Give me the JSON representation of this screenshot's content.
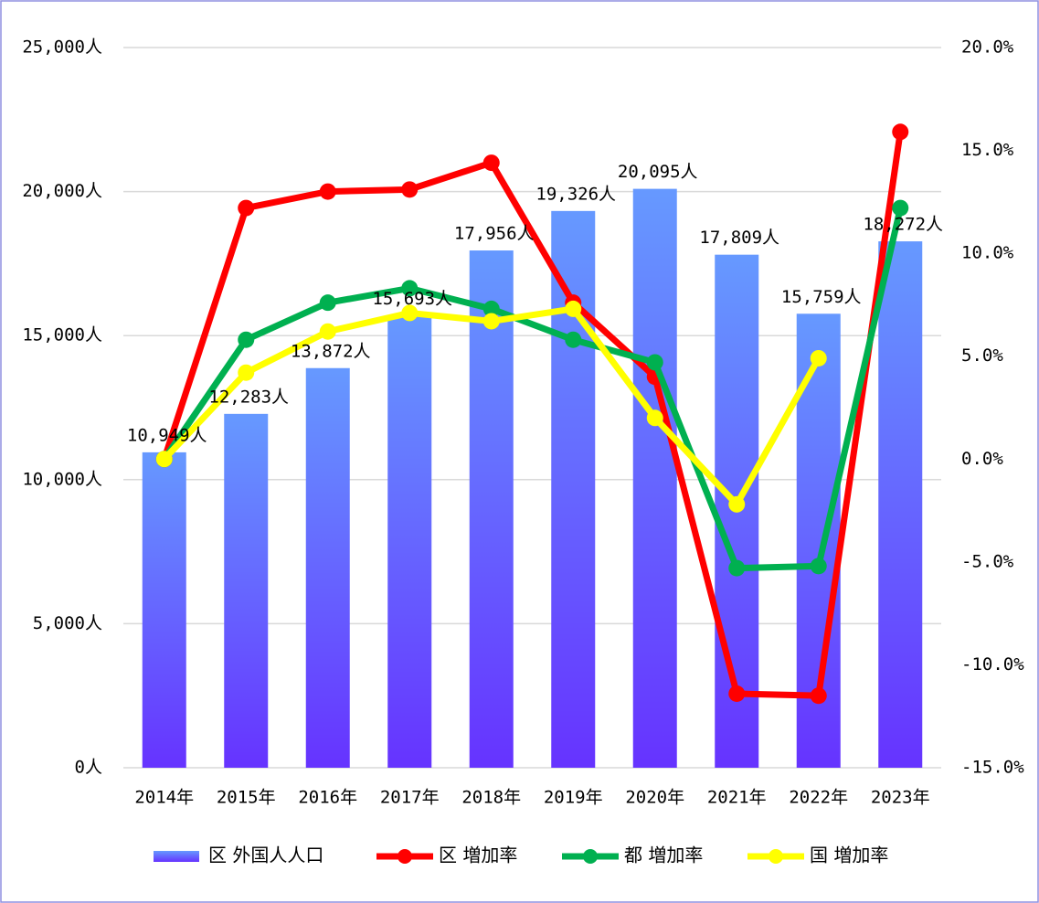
{
  "chart_data": {
    "type": "bar",
    "categories": [
      "2014年",
      "2015年",
      "2016年",
      "2017年",
      "2018年",
      "2019年",
      "2020年",
      "2021年",
      "2022年",
      "2023年"
    ],
    "series": [
      {
        "name": "区 外国人人口",
        "type": "bar",
        "axis": "y",
        "color": "#6666ff",
        "values": [
          10949,
          12283,
          13872,
          15693,
          17956,
          19326,
          20095,
          17809,
          15759,
          18272
        ],
        "value_labels": [
          "10,949人",
          "12,283人",
          "13,872人",
          "15,693人",
          "17,956人",
          "19,326人",
          "20,095人",
          "17,809人",
          "15,759人",
          "18,272人"
        ]
      },
      {
        "name": "区 増加率",
        "type": "line",
        "axis": "y2",
        "color": "#ff0000",
        "values": [
          0.0,
          12.2,
          13.0,
          13.1,
          14.4,
          7.6,
          4.0,
          -11.4,
          -11.5,
          15.9
        ]
      },
      {
        "name": "都 増加率",
        "type": "line",
        "axis": "y2",
        "color": "#00b050",
        "values": [
          0.0,
          5.8,
          7.6,
          8.3,
          7.3,
          5.8,
          4.7,
          -5.3,
          -5.2,
          12.2
        ]
      },
      {
        "name": "国 増加率",
        "type": "line",
        "axis": "y2",
        "color": "#ffff00",
        "values": [
          0.0,
          4.2,
          6.2,
          7.1,
          6.7,
          7.3,
          2.0,
          -2.2,
          4.9,
          null
        ]
      }
    ],
    "ylim": [
      0,
      25000
    ],
    "yticks": [
      {
        "value": 0,
        "label": "0人"
      },
      {
        "value": 5000,
        "label": "5,000人"
      },
      {
        "value": 10000,
        "label": "10,000人"
      },
      {
        "value": 15000,
        "label": "15,000人"
      },
      {
        "value": 20000,
        "label": "20,000人"
      },
      {
        "value": 25000,
        "label": "25,000人"
      }
    ],
    "y2lim": [
      -15,
      20
    ],
    "y2ticks": [
      {
        "value": -15,
        "label": "-15.0%"
      },
      {
        "value": -10,
        "label": "-10.0%"
      },
      {
        "value": -5,
        "label": "-5.0%"
      },
      {
        "value": 0,
        "label": "0.0%"
      },
      {
        "value": 5,
        "label": "5.0%"
      },
      {
        "value": 10,
        "label": "10.0%"
      },
      {
        "value": 15,
        "label": "15.0%"
      },
      {
        "value": 20,
        "label": "20.0%"
      }
    ],
    "grid": true,
    "legend": "bottom"
  }
}
